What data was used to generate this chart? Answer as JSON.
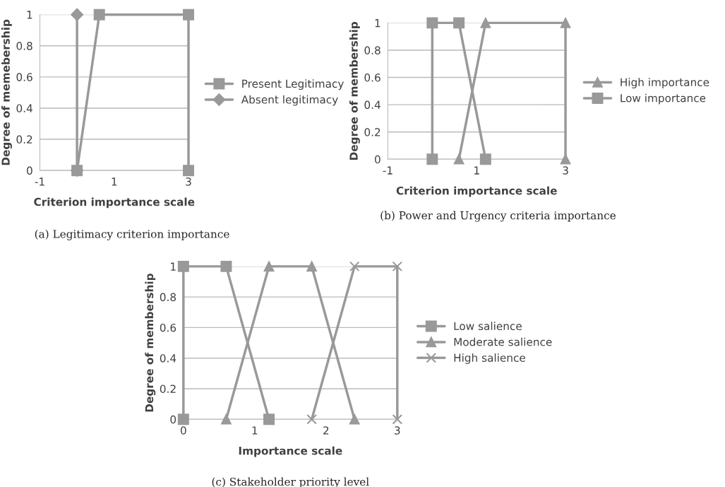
{
  "chart_data": [
    {
      "type": "line",
      "xlabel": "Criterion importance scale",
      "ylabel": "Degree of memebership",
      "xlim": [
        -1,
        3
      ],
      "xticks": [
        -1,
        1,
        3
      ],
      "ylim": [
        0,
        1
      ],
      "yticks": [
        0,
        0.2,
        0.4,
        0.6,
        0.8,
        1
      ],
      "grid": "y",
      "legend": "right",
      "annotations": [
        "(a) Legitimacy criterion importance"
      ],
      "series": [
        {
          "name": "Present Legitimacy",
          "color": "#999999",
          "marker": "square",
          "x": [
            0,
            0.6,
            3,
            3
          ],
          "values": [
            0,
            1,
            1,
            0
          ]
        },
        {
          "name": "Absent legitimacy",
          "color": "#999999",
          "marker": "diamond",
          "x": [
            0,
            0
          ],
          "values": [
            1,
            0
          ]
        }
      ]
    },
    {
      "type": "line",
      "xlabel": "Criterion importance scale",
      "ylabel": "Degree of membership",
      "xlim": [
        -1,
        3
      ],
      "xticks": [
        -1,
        1,
        3
      ],
      "ylim": [
        0,
        1
      ],
      "yticks": [
        0,
        0.2,
        0.4,
        0.6,
        0.8,
        1
      ],
      "grid": "y",
      "legend": "right",
      "annotations": [
        "(b) Power and Urgency criteria importance"
      ],
      "series": [
        {
          "name": "High importance",
          "color": "#999999",
          "marker": "triangle",
          "x": [
            0.6,
            1.2,
            3,
            3
          ],
          "values": [
            0,
            1,
            1,
            0
          ]
        },
        {
          "name": "Low importance",
          "color": "#999999",
          "marker": "square",
          "x": [
            0,
            0,
            0.6,
            1.2
          ],
          "values": [
            0,
            1,
            1,
            0
          ]
        }
      ]
    },
    {
      "type": "line",
      "xlabel": "Importance scale",
      "ylabel": "Degree of membership",
      "xlim": [
        0,
        3
      ],
      "xticks": [
        0,
        1,
        2,
        3
      ],
      "ylim": [
        0,
        1
      ],
      "yticks": [
        0,
        0.2,
        0.4,
        0.6,
        0.8,
        1
      ],
      "grid": "y",
      "legend": "right",
      "annotations": [
        "(c) Stakeholder priority level"
      ],
      "series": [
        {
          "name": "Low salience",
          "color": "#999999",
          "marker": "square",
          "x": [
            0,
            0,
            0.6,
            1.2
          ],
          "values": [
            0,
            1,
            1,
            0
          ]
        },
        {
          "name": "Moderate salience",
          "color": "#999999",
          "marker": "triangle",
          "x": [
            0.6,
            1.2,
            1.8,
            2.4
          ],
          "values": [
            0,
            1,
            1,
            0
          ]
        },
        {
          "name": "High salience",
          "color": "#999999",
          "marker": "cross",
          "x": [
            1.8,
            2.4,
            3,
            3
          ],
          "values": [
            0,
            1,
            1,
            0
          ]
        }
      ]
    }
  ]
}
